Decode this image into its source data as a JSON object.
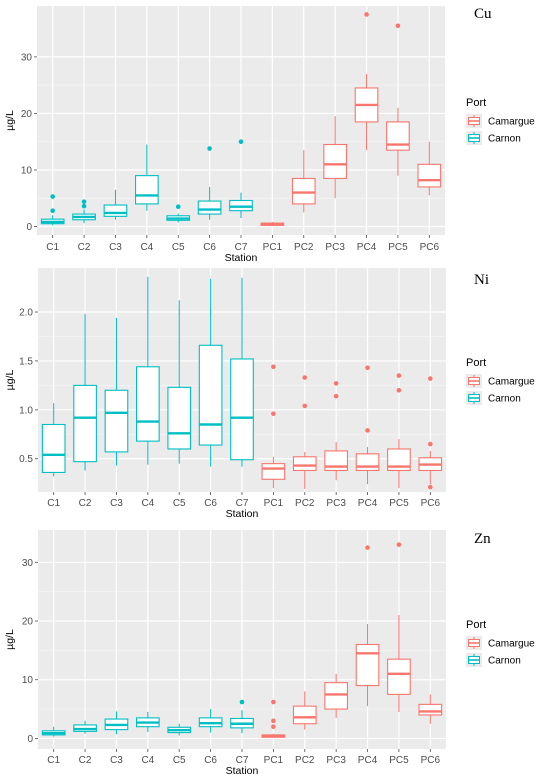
{
  "chart_data": [
    {
      "type": "box",
      "metal": "Cu",
      "xlabel": "Station",
      "ylabel": "µg/L",
      "ylim": [
        -1.5,
        39
      ],
      "yticks": [
        0,
        10,
        20,
        30
      ],
      "categories": [
        "C1",
        "C2",
        "C3",
        "C4",
        "C5",
        "C6",
        "C7",
        "PC1",
        "PC2",
        "PC3",
        "PC4",
        "PC5",
        "PC6"
      ],
      "legend": {
        "title": "Port",
        "entries": [
          "Camargue",
          "Carnon"
        ]
      },
      "colors": {
        "Camargue": "#F8766D",
        "Carnon": "#00BFC4"
      },
      "series": [
        {
          "name": "Carnon",
          "stats": [
            {
              "cat": "C1",
              "min": 0.2,
              "q1": 0.5,
              "median": 0.8,
              "q3": 1.3,
              "max": 2.0,
              "outliers": [
                2.8,
                5.3
              ]
            },
            {
              "cat": "C2",
              "min": 0.6,
              "q1": 1.2,
              "median": 1.7,
              "q3": 2.2,
              "max": 3.0,
              "outliers": [
                3.6,
                4.4
              ]
            },
            {
              "cat": "C3",
              "min": 1.2,
              "q1": 1.8,
              "median": 2.4,
              "q3": 3.8,
              "max": 6.5,
              "outliers": []
            },
            {
              "cat": "C4",
              "min": 2.8,
              "q1": 4.0,
              "median": 5.5,
              "q3": 9.0,
              "max": 14.5,
              "outliers": []
            },
            {
              "cat": "C5",
              "min": 0.7,
              "q1": 1.1,
              "median": 1.4,
              "q3": 1.9,
              "max": 2.3,
              "outliers": [
                3.5
              ]
            },
            {
              "cat": "C6",
              "min": 1.2,
              "q1": 2.2,
              "median": 3.0,
              "q3": 4.5,
              "max": 7.0,
              "outliers": [
                13.8
              ]
            },
            {
              "cat": "C7",
              "min": 1.5,
              "q1": 2.8,
              "median": 3.5,
              "q3": 4.6,
              "max": 6.0,
              "outliers": [
                15.0
              ]
            }
          ]
        },
        {
          "name": "Camargue",
          "stats": [
            {
              "cat": "PC1",
              "min": 0.1,
              "q1": 0.2,
              "median": 0.4,
              "q3": 0.6,
              "max": 0.8,
              "outliers": []
            },
            {
              "cat": "PC2",
              "min": 2.5,
              "q1": 4.0,
              "median": 6.0,
              "q3": 8.5,
              "max": 13.5,
              "outliers": []
            },
            {
              "cat": "PC3",
              "min": 5.0,
              "q1": 8.5,
              "median": 11.0,
              "q3": 14.5,
              "max": 19.5,
              "outliers": []
            },
            {
              "cat": "PC4",
              "min": 13.5,
              "q1": 18.5,
              "median": 21.5,
              "q3": 24.5,
              "max": 27.0,
              "outliers": [
                37.5
              ]
            },
            {
              "cat": "PC5",
              "min": 9.0,
              "q1": 13.5,
              "median": 14.5,
              "q3": 18.5,
              "max": 21.0,
              "outliers": [
                35.5
              ]
            },
            {
              "cat": "PC6",
              "min": 5.5,
              "q1": 7.0,
              "median": 8.2,
              "q3": 11.0,
              "max": 15.0,
              "outliers": []
            }
          ]
        }
      ]
    },
    {
      "type": "box",
      "metal": "Ni",
      "xlabel": "Station",
      "ylabel": "µg/L",
      "ylim": [
        0.16,
        2.45
      ],
      "yticks": [
        0.5,
        1.0,
        1.5,
        2.0
      ],
      "ytick_labels": [
        "0.5",
        "1.0",
        "1.5",
        "2.0"
      ],
      "categories": [
        "C1",
        "C2",
        "C3",
        "C4",
        "C5",
        "C6",
        "C7",
        "PC1",
        "PC2",
        "PC3",
        "PC4",
        "PC5",
        "PC6"
      ],
      "legend": {
        "title": "Port",
        "entries": [
          "Camargue",
          "Carnon"
        ]
      },
      "colors": {
        "Camargue": "#F8766D",
        "Carnon": "#00BFC4"
      },
      "series": [
        {
          "name": "Carnon",
          "stats": [
            {
              "cat": "C1",
              "min": 0.32,
              "q1": 0.36,
              "median": 0.54,
              "q3": 0.85,
              "max": 1.07,
              "outliers": []
            },
            {
              "cat": "C2",
              "min": 0.38,
              "q1": 0.47,
              "median": 0.92,
              "q3": 1.25,
              "max": 1.98,
              "outliers": []
            },
            {
              "cat": "C3",
              "min": 0.43,
              "q1": 0.57,
              "median": 0.97,
              "q3": 1.2,
              "max": 1.94,
              "outliers": []
            },
            {
              "cat": "C4",
              "min": 0.44,
              "q1": 0.68,
              "median": 0.88,
              "q3": 1.44,
              "max": 2.36,
              "outliers": []
            },
            {
              "cat": "C5",
              "min": 0.45,
              "q1": 0.6,
              "median": 0.76,
              "q3": 1.23,
              "max": 2.12,
              "outliers": []
            },
            {
              "cat": "C6",
              "min": 0.42,
              "q1": 0.64,
              "median": 0.85,
              "q3": 1.66,
              "max": 2.34,
              "outliers": []
            },
            {
              "cat": "C7",
              "min": 0.42,
              "q1": 0.49,
              "median": 0.92,
              "q3": 1.52,
              "max": 2.35,
              "outliers": []
            }
          ]
        },
        {
          "name": "Camargue",
          "stats": [
            {
              "cat": "PC1",
              "min": 0.2,
              "q1": 0.29,
              "median": 0.4,
              "q3": 0.45,
              "max": 0.52,
              "outliers": [
                0.96,
                1.44
              ]
            },
            {
              "cat": "PC2",
              "min": 0.19,
              "q1": 0.38,
              "median": 0.43,
              "q3": 0.52,
              "max": 0.57,
              "outliers": [
                1.04,
                1.33
              ]
            },
            {
              "cat": "PC3",
              "min": 0.28,
              "q1": 0.38,
              "median": 0.42,
              "q3": 0.58,
              "max": 0.67,
              "outliers": [
                1.14,
                1.27
              ]
            },
            {
              "cat": "PC4",
              "min": 0.24,
              "q1": 0.38,
              "median": 0.42,
              "q3": 0.55,
              "max": 0.62,
              "outliers": [
                0.79,
                1.43
              ]
            },
            {
              "cat": "PC5",
              "min": 0.2,
              "q1": 0.38,
              "median": 0.42,
              "q3": 0.6,
              "max": 0.7,
              "outliers": [
                1.2,
                1.35
              ]
            },
            {
              "cat": "PC6",
              "min": 0.24,
              "q1": 0.38,
              "median": 0.44,
              "q3": 0.51,
              "max": 0.58,
              "outliers": [
                0.21,
                0.65,
                1.32
              ]
            }
          ]
        }
      ]
    },
    {
      "type": "box",
      "metal": "Zn",
      "xlabel": "Station",
      "ylabel": "µg/L",
      "ylim": [
        -1.8,
        35.5
      ],
      "yticks": [
        0,
        10,
        20,
        30
      ],
      "categories": [
        "C1",
        "C2",
        "C3",
        "C4",
        "C5",
        "C6",
        "C7",
        "PC1",
        "PC2",
        "PC3",
        "PC4",
        "PC5",
        "PC6"
      ],
      "legend": {
        "title": "Port",
        "entries": [
          "Camargue",
          "Carnon"
        ]
      },
      "colors": {
        "Camargue": "#F8766D",
        "Carnon": "#00BFC4"
      },
      "series": [
        {
          "name": "Carnon",
          "stats": [
            {
              "cat": "C1",
              "min": 0.3,
              "q1": 0.6,
              "median": 0.9,
              "q3": 1.3,
              "max": 2.0,
              "outliers": []
            },
            {
              "cat": "C2",
              "min": 0.8,
              "q1": 1.2,
              "median": 1.6,
              "q3": 2.3,
              "max": 3.0,
              "outliers": []
            },
            {
              "cat": "C3",
              "min": 0.7,
              "q1": 1.5,
              "median": 2.3,
              "q3": 3.3,
              "max": 4.6,
              "outliers": []
            },
            {
              "cat": "C4",
              "min": 1.1,
              "q1": 2.0,
              "median": 2.7,
              "q3": 3.5,
              "max": 4.5,
              "outliers": []
            },
            {
              "cat": "C5",
              "min": 0.5,
              "q1": 1.0,
              "median": 1.4,
              "q3": 1.9,
              "max": 2.5,
              "outliers": []
            },
            {
              "cat": "C6",
              "min": 1.0,
              "q1": 2.0,
              "median": 2.6,
              "q3": 3.5,
              "max": 5.0,
              "outliers": []
            },
            {
              "cat": "C7",
              "min": 0.9,
              "q1": 1.8,
              "median": 2.5,
              "q3": 3.4,
              "max": 4.8,
              "outliers": [
                6.2
              ]
            }
          ]
        },
        {
          "name": "Camargue",
          "stats": [
            {
              "cat": "PC1",
              "min": 0.1,
              "q1": 0.2,
              "median": 0.4,
              "q3": 0.6,
              "max": 0.8,
              "outliers": [
                2.0,
                3.0,
                6.2
              ]
            },
            {
              "cat": "PC2",
              "min": 1.5,
              "q1": 2.5,
              "median": 3.6,
              "q3": 5.5,
              "max": 8.0,
              "outliers": []
            },
            {
              "cat": "PC3",
              "min": 3.5,
              "q1": 5.0,
              "median": 7.5,
              "q3": 9.5,
              "max": 11.0,
              "outliers": []
            },
            {
              "cat": "PC4",
              "min": 5.5,
              "q1": 9.0,
              "median": 14.5,
              "q3": 16.0,
              "max": 19.5,
              "outliers": [
                32.5
              ]
            },
            {
              "cat": "PC5",
              "min": 4.5,
              "q1": 7.5,
              "median": 11.0,
              "q3": 13.5,
              "max": 21.0,
              "outliers": [
                33.0
              ]
            },
            {
              "cat": "PC6",
              "min": 2.5,
              "q1": 4.0,
              "median": 4.6,
              "q3": 5.8,
              "max": 7.5,
              "outliers": []
            }
          ]
        }
      ]
    }
  ]
}
